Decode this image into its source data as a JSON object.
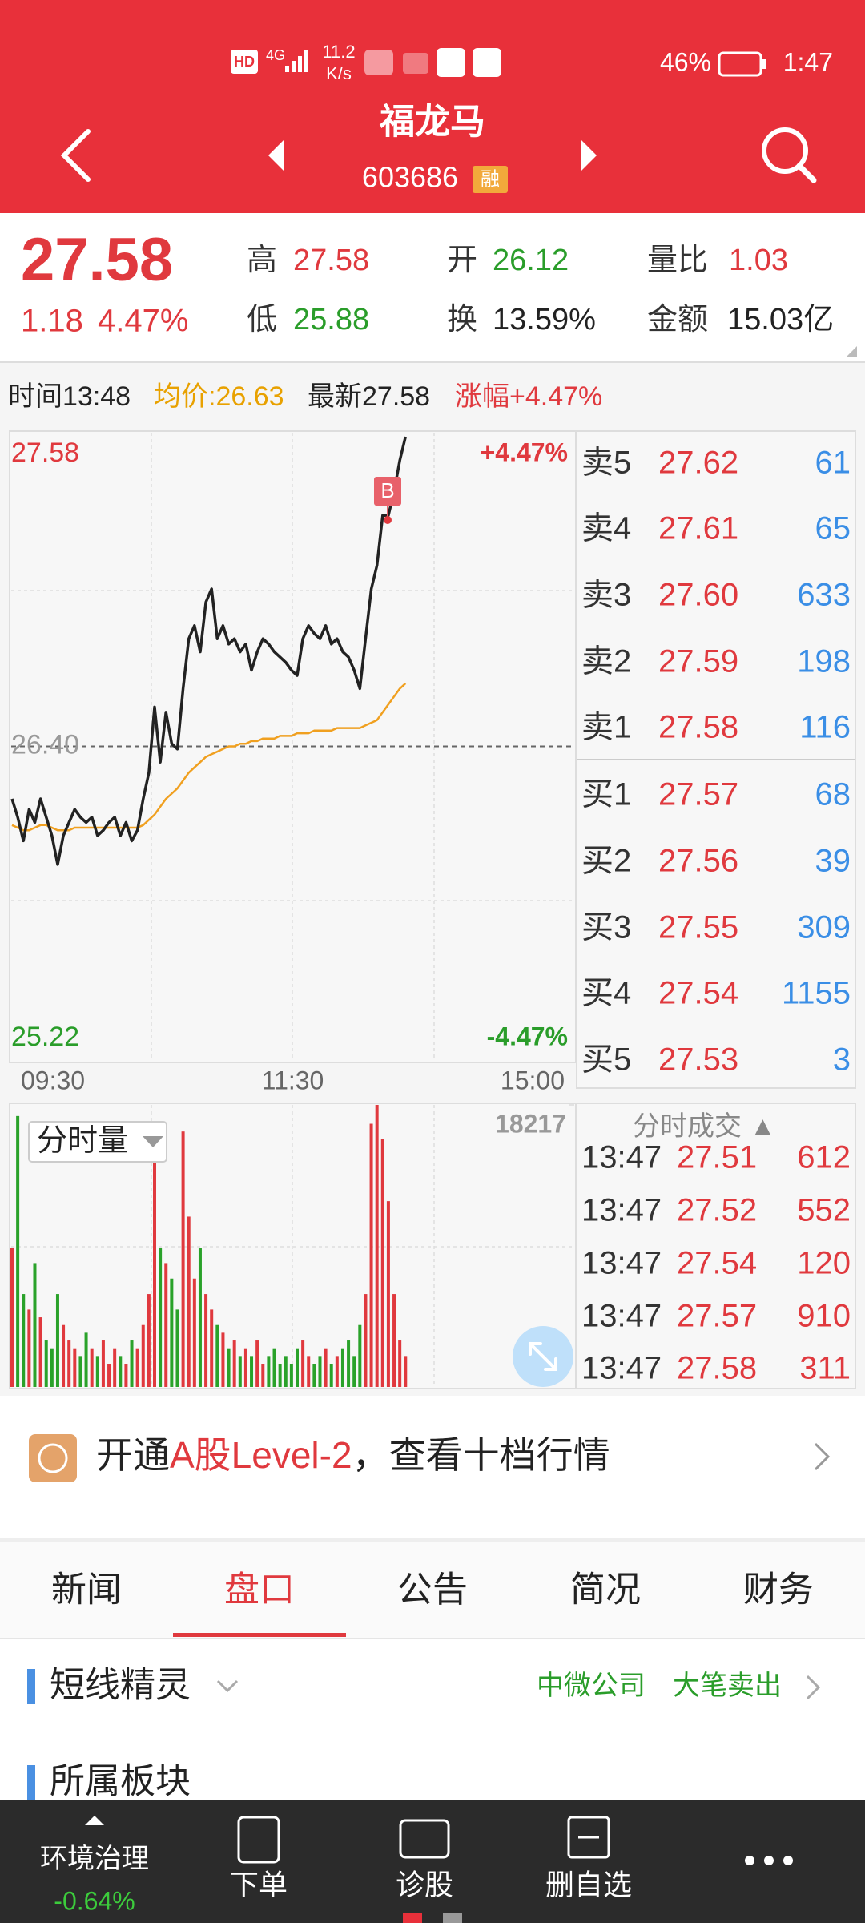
{
  "status_bar": {
    "hd": "HD",
    "signal": "4G",
    "speed": "11.2",
    "speed_unit": "K/s",
    "battery": "46%",
    "time": "1:47"
  },
  "header": {
    "title": "福龙马",
    "code": "603686",
    "badge": "融"
  },
  "quote": {
    "price": "27.58",
    "change": "1.18",
    "change_pct": "4.47%",
    "high_label": "高",
    "high": "27.58",
    "open_label": "开",
    "open": "26.12",
    "ratio_label": "量比",
    "ratio": "1.03",
    "low_label": "低",
    "low": "25.88",
    "turnover_label": "换",
    "turnover": "13.59%",
    "amount_label": "金额",
    "amount": "15.03亿"
  },
  "info_line": {
    "time": "时间13:48",
    "avg": "均价:26.63",
    "latest": "最新27.58",
    "change": "涨幅+4.47%"
  },
  "chart_data": [
    {
      "type": "line",
      "ylim": [
        25.22,
        27.58
      ],
      "yticks": [
        27.58,
        {
          "value": 26.4,
          "label": "26.40"
        },
        25.22
      ],
      "y2lim": [
        -4.47,
        4.47
      ],
      "y2ticks": [
        {
          "value": 4.47,
          "label": "+4.47%"
        },
        {
          "value": -4.47,
          "label": "-4.47%"
        }
      ],
      "x_labels": [
        "09:30",
        "11:30",
        "15:00"
      ],
      "marker": "B",
      "series": [
        {
          "color": "#222222",
          "values": [
            26.2,
            26.13,
            26.04,
            26.16,
            26.11,
            26.2,
            26.13,
            26.06,
            25.95,
            26.06,
            26.11,
            26.16,
            26.13,
            26.11,
            26.13,
            26.06,
            26.08,
            26.11,
            26.13,
            26.06,
            26.11,
            26.04,
            26.08,
            26.2,
            26.3,
            26.55,
            26.34,
            26.53,
            26.41,
            26.39,
            26.62,
            26.81,
            26.86,
            26.76,
            26.95,
            27.0,
            26.81,
            26.86,
            26.79,
            26.81,
            26.76,
            26.79,
            26.69,
            26.76,
            26.81,
            26.79,
            26.76,
            26.74,
            26.72,
            26.69,
            26.67,
            26.81,
            26.86,
            26.83,
            26.81,
            26.86,
            26.79,
            26.81,
            26.76,
            26.74,
            26.69,
            26.62,
            26.81,
            27.0,
            27.09,
            27.28,
            27.28,
            27.37,
            27.49,
            27.58
          ]
        },
        {
          "color": "#f0a020",
          "values": [
            26.1,
            26.09,
            26.08,
            26.08,
            26.09,
            26.1,
            26.1,
            26.09,
            26.08,
            26.08,
            26.08,
            26.09,
            26.09,
            26.09,
            26.09,
            26.09,
            26.09,
            26.09,
            26.09,
            26.09,
            26.09,
            26.09,
            26.09,
            26.1,
            26.12,
            26.14,
            26.17,
            26.2,
            26.22,
            26.24,
            26.27,
            26.3,
            26.32,
            26.34,
            26.36,
            26.37,
            26.38,
            26.39,
            26.4,
            26.4,
            26.41,
            26.41,
            26.42,
            26.42,
            26.43,
            26.43,
            26.43,
            26.44,
            26.44,
            26.44,
            26.45,
            26.45,
            26.45,
            26.46,
            26.46,
            26.46,
            26.46,
            26.47,
            26.47,
            26.47,
            26.47,
            26.47,
            26.48,
            26.49,
            26.5,
            26.53,
            26.56,
            26.59,
            26.62,
            26.64
          ]
        }
      ]
    },
    {
      "type": "bar",
      "label": "分时量",
      "up_color": "#e0393e",
      "down_color": "#2aa22a",
      "ylim": [
        0,
        18217
      ],
      "yticks": [
        18217
      ],
      "values": [
        9000,
        17500,
        6000,
        5000,
        8000,
        4500,
        3000,
        2500,
        6000,
        4000,
        3000,
        2500,
        2000,
        3500,
        2500,
        2000,
        3000,
        1500,
        2500,
        2000,
        1500,
        3000,
        2500,
        4000,
        6000,
        15000,
        9000,
        8000,
        7000,
        5000,
        16500,
        11000,
        7000,
        9000,
        6000,
        5000,
        4000,
        3500,
        2500,
        3000,
        2000,
        2500,
        2000,
        3000,
        1500,
        2000,
        2500,
        1500,
        2000,
        1500,
        2500,
        3000,
        2000,
        1500,
        2000,
        2500,
        1500,
        2000,
        2500,
        3000,
        2000,
        4000,
        6000,
        17000,
        18217,
        16000,
        12000,
        6000,
        3000,
        2000
      ]
    }
  ],
  "order_book": {
    "asks": [
      [
        "卖5",
        "27.62",
        "61"
      ],
      [
        "卖4",
        "27.61",
        "65"
      ],
      [
        "卖3",
        "27.60",
        "633"
      ],
      [
        "卖2",
        "27.59",
        "198"
      ],
      [
        "卖1",
        "27.58",
        "116"
      ]
    ],
    "bids": [
      [
        "买1",
        "27.57",
        "68"
      ],
      [
        "买2",
        "27.56",
        "39"
      ],
      [
        "买3",
        "27.55",
        "309"
      ],
      [
        "买4",
        "27.54",
        "1155"
      ],
      [
        "买5",
        "27.53",
        "3"
      ]
    ]
  },
  "trades": {
    "title": "分时成交 ▲",
    "rows": [
      [
        "13:47",
        "27.51",
        "612"
      ],
      [
        "13:47",
        "27.52",
        "552"
      ],
      [
        "13:47",
        "27.54",
        "120"
      ],
      [
        "13:47",
        "27.57",
        "910"
      ],
      [
        "13:47",
        "27.58",
        "311"
      ]
    ]
  },
  "banner": {
    "prefix": "开通",
    "highlight": "A股Level-2",
    "suffix": "，查看十档行情"
  },
  "tabs": [
    "新闻",
    "盘口",
    "公告",
    "简况",
    "财务"
  ],
  "active_tab": 1,
  "section": {
    "title": "短线精灵",
    "company": "中微公司",
    "signal": "大笔卖出"
  },
  "section2": {
    "title": "所属板块"
  },
  "bottom_bar": {
    "sector": "环境治理",
    "sector_change": "-0.64%",
    "order": "下单",
    "diagnose": "诊股",
    "remove": "删自选"
  }
}
